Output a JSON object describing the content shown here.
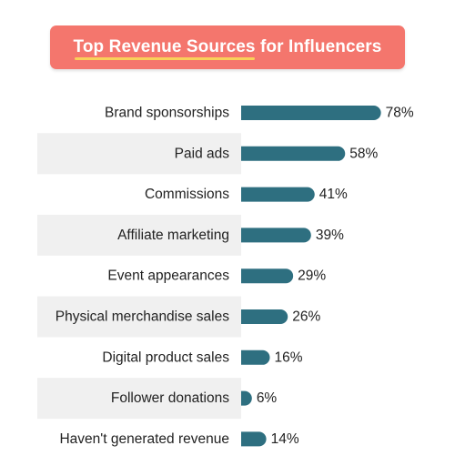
{
  "chart_data": {
    "type": "bar",
    "orientation": "horizontal",
    "title": "Top Revenue Sources for Influencers",
    "categories": [
      "Brand sponsorships",
      "Paid ads",
      "Commissions",
      "Affiliate marketing",
      "Event appearances",
      "Physical merchandise sales",
      "Digital product sales",
      "Follower donations",
      "Haven't generated revenue"
    ],
    "values": [
      78,
      58,
      41,
      39,
      29,
      26,
      16,
      6,
      14
    ],
    "value_labels": [
      "78%",
      "58%",
      "41%",
      "39%",
      "29%",
      "26%",
      "16%",
      "6%",
      "14%"
    ],
    "unit": "%",
    "xlim": [
      0,
      100
    ],
    "grid": false,
    "legend": "none",
    "colors": {
      "bar": "#2e6f80",
      "title_bg": "#f4766d",
      "title_underline": "#f9d05a",
      "row_stripe": "#f0f0f0"
    }
  }
}
